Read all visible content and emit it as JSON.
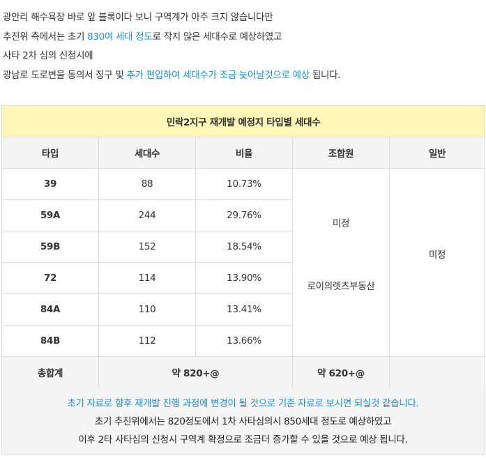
{
  "intro": {
    "line1": "광안리 해수욕장 바로 앞 블록이다 보니 구역계가 아주 크지 않습니다만",
    "line2_a": "추진위 측에서는 초기 ",
    "line2_b": "830여 세대 정도",
    "line2_c": "로 작지 않은 세대수로 예상하였고",
    "line3": "사타 2차 심의 신청시에",
    "line4_a": "광남로 도로변을 동의서 징구 및 ",
    "line4_b": "추가 편입하여 세대수가 조금 늦어날것으로 예상",
    "line4_c": " 됩니다."
  },
  "table": {
    "title": "민락2지구 재개발 예정지 타입별 세대수",
    "headers": [
      "타입",
      "세대수",
      "비율",
      "조합원",
      "일반"
    ],
    "rows": [
      {
        "type": "39",
        "units": "88",
        "ratio": "10.73%"
      },
      {
        "type": "59A",
        "units": "244",
        "ratio": "29.76%"
      },
      {
        "type": "59B",
        "units": "152",
        "ratio": "18.54%"
      },
      {
        "type": "72",
        "units": "114",
        "ratio": "13.90%"
      },
      {
        "type": "84A",
        "units": "110",
        "ratio": "13.41%"
      },
      {
        "type": "84B",
        "units": "112",
        "ratio": "13.66%"
      }
    ],
    "member_value": "미정",
    "general_value": "미정",
    "member_note": "로이의렛츠부동산",
    "total_label": "총합계",
    "total_units": "약 820+@",
    "total_member": "약 620+@"
  },
  "notes": {
    "line1": "초기 자료로 향후 재개발 진행 과정에 변경이 될 것으로 기준 자료로 보시면 되실것 같습니다.",
    "line2": "초기 추진위에서는 820정도에서 1차 사타심의시 850세대 정도로 예상하였고",
    "line3": "이후 2타 사타심의 신청시 구역계 확정으로 조금더 증가할 수 있을 것으로 예상 됩니다."
  }
}
